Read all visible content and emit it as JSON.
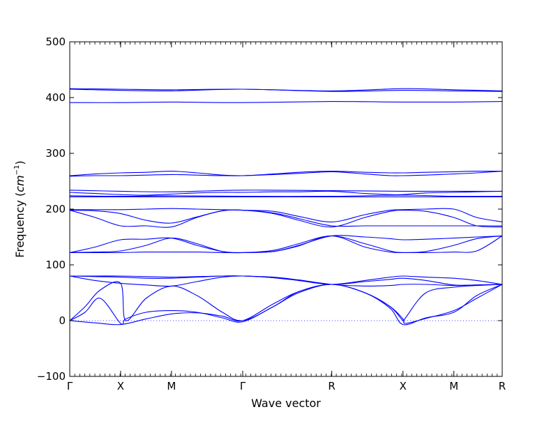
{
  "chart_data": {
    "type": "line",
    "title": "",
    "xlabel": "Wave vector",
    "ylabel_prefix": "Frequency (",
    "ylabel_unit_base": "cm",
    "ylabel_unit_exp": "−1",
    "ylabel_suffix": ")",
    "ylim": [
      -100,
      500
    ],
    "yticks": [
      -100,
      0,
      100,
      200,
      300,
      400,
      500
    ],
    "ytick_labels": [
      "−100",
      "0",
      "100",
      "200",
      "300",
      "400",
      "500"
    ],
    "grid": false,
    "legend": "none",
    "line_color": "#0000ff",
    "zero_line": true,
    "xlim": [
      0,
      8.5
    ],
    "kpoints": [
      {
        "label": "Γ",
        "pos": 0
      },
      {
        "label": "X",
        "pos": 1
      },
      {
        "label": "M",
        "pos": 2
      },
      {
        "label": "Γ",
        "pos": 3.4
      },
      {
        "label": "R",
        "pos": 5.15
      },
      {
        "label": "X",
        "pos": 6.55
      },
      {
        "label": "M",
        "pos": 7.55
      },
      {
        "label": "R",
        "pos": 8.5
      }
    ],
    "bands": [
      {
        "name": "b1",
        "x": [
          0,
          0.5,
          1,
          1.5,
          2,
          2.5,
          3,
          3.4,
          4,
          4.5,
          5.15,
          5.8,
          6.3,
          6.55,
          7,
          7.55,
          8,
          8.5
        ],
        "y": [
          0,
          -4,
          -7,
          3,
          12,
          14,
          8,
          0,
          30,
          52,
          65,
          50,
          22,
          -7,
          5,
          15,
          45,
          65
        ]
      },
      {
        "name": "b2",
        "x": [
          0,
          0.3,
          0.6,
          1,
          1.1,
          1.5,
          2,
          2.5,
          3,
          3.4,
          4,
          4.5,
          5.15,
          5.8,
          6.3,
          6.55,
          6.6,
          7,
          7.55,
          8,
          8.5
        ],
        "y": [
          0,
          15,
          40,
          -5,
          3,
          15,
          18,
          15,
          5,
          -2,
          25,
          50,
          65,
          50,
          25,
          3,
          -5,
          4,
          18,
          40,
          65
        ]
      },
      {
        "name": "b3",
        "x": [
          0,
          0.3,
          0.6,
          1,
          1.1,
          1.5,
          2,
          2.5,
          3,
          3.4,
          4,
          4.5,
          5.15,
          5.8,
          6.3,
          6.55,
          6.6,
          7,
          7.55,
          8,
          8.5
        ],
        "y": [
          0,
          25,
          55,
          67,
          0,
          40,
          62,
          45,
          15,
          0,
          25,
          52,
          65,
          50,
          25,
          0,
          5,
          50,
          60,
          63,
          65
        ]
      },
      {
        "name": "b4",
        "x": [
          0,
          0.5,
          1,
          1.5,
          2,
          2.5,
          3,
          3.4,
          4,
          4.5,
          5.15,
          5.8,
          6.3,
          6.55,
          7,
          7.55,
          8,
          8.5
        ],
        "y": [
          80,
          72,
          67,
          64,
          62,
          70,
          78,
          80,
          77,
          72,
          65,
          70,
          74,
          76,
          72,
          64,
          64,
          65
        ]
      },
      {
        "name": "b5",
        "x": [
          0,
          0.5,
          1,
          1.5,
          2,
          2.5,
          3,
          3.4,
          4,
          4.5,
          5.15,
          5.8,
          6.3,
          6.55,
          7,
          7.55,
          8,
          8.5
        ],
        "y": [
          80,
          79,
          78,
          76,
          76,
          78,
          80,
          80,
          77,
          72,
          65,
          72,
          78,
          80,
          78,
          76,
          72,
          65
        ]
      },
      {
        "name": "b6",
        "x": [
          0,
          0.5,
          1,
          1.5,
          2,
          2.5,
          3,
          3.4,
          4,
          4.5,
          5.15,
          5.8,
          6.3,
          6.55,
          7,
          7.55,
          8,
          8.5
        ],
        "y": [
          80,
          80,
          80,
          79,
          78,
          79,
          80,
          80,
          78,
          73,
          65,
          62,
          63,
          65,
          65,
          63,
          64,
          65
        ]
      },
      {
        "name": "b7",
        "x": [
          0,
          0.5,
          1,
          1.5,
          2,
          2.5,
          3,
          3.4,
          4,
          4.5,
          5.15,
          5.8,
          6.3,
          6.55,
          7,
          7.55,
          8,
          8.5
        ],
        "y": [
          122,
          132,
          145,
          146,
          148,
          135,
          124,
          122,
          124,
          135,
          152,
          150,
          147,
          145,
          146,
          148,
          150,
          152
        ]
      },
      {
        "name": "b8",
        "x": [
          0,
          0.5,
          1,
          1.5,
          2,
          2.5,
          3,
          3.4,
          4,
          4.5,
          5.15,
          5.8,
          6.3,
          6.55,
          7,
          7.55,
          8,
          8.5
        ],
        "y": [
          122,
          123,
          125,
          135,
          148,
          138,
          124,
          122,
          126,
          138,
          152,
          138,
          125,
          122,
          124,
          135,
          147,
          152
        ]
      },
      {
        "name": "b9",
        "x": [
          0,
          0.5,
          1,
          1.5,
          2,
          2.5,
          3,
          3.4,
          4,
          4.5,
          5.15,
          5.8,
          6.3,
          6.55,
          7,
          7.55,
          8,
          8.5
        ],
        "y": [
          122,
          122,
          122,
          123,
          123,
          123,
          122,
          122,
          124,
          134,
          152,
          132,
          123,
          122,
          122,
          123,
          125,
          152
        ]
      },
      {
        "name": "b10",
        "x": [
          0,
          0.5,
          1,
          1.5,
          2,
          2.5,
          3,
          3.4,
          4,
          4.5,
          5.15,
          5.8,
          6.3,
          6.55,
          7,
          7.55,
          8,
          8.5
        ],
        "y": [
          198,
          185,
          170,
          170,
          168,
          185,
          197,
          198,
          192,
          180,
          168,
          185,
          196,
          198,
          196,
          185,
          170,
          168
        ]
      },
      {
        "name": "b11",
        "x": [
          0,
          0.5,
          1,
          1.5,
          2,
          2.5,
          3,
          3.4,
          4,
          4.5,
          5.15,
          5.8,
          6.3,
          6.55,
          7,
          7.55,
          8,
          8.5
        ],
        "y": [
          198,
          197,
          192,
          180,
          175,
          186,
          197,
          198,
          193,
          183,
          170,
          170,
          170,
          170,
          170,
          170,
          170,
          170
        ]
      },
      {
        "name": "b12",
        "x": [
          0,
          0.5,
          1,
          1.5,
          2,
          2.5,
          3,
          3.4,
          4,
          4.5,
          5.15,
          5.8,
          6.3,
          6.55,
          7,
          7.55,
          8,
          8.5
        ],
        "y": [
          199,
          199,
          199,
          200,
          201,
          200,
          199,
          198,
          196,
          187,
          177,
          190,
          198,
          199,
          200,
          200,
          185,
          177
        ]
      },
      {
        "name": "b13",
        "x": [
          0,
          1,
          2,
          3.4,
          5.15,
          6.55,
          7.55,
          8.5
        ],
        "y": [
          222,
          222,
          222,
          222,
          222,
          222,
          222,
          222
        ]
      },
      {
        "name": "b14",
        "x": [
          0,
          1,
          2,
          3.4,
          5.15,
          6.55,
          7.55,
          8.5
        ],
        "y": [
          224,
          223,
          224,
          223,
          223,
          225,
          223,
          223
        ]
      },
      {
        "name": "b15",
        "x": [
          0,
          0.5,
          1,
          1.5,
          2,
          2.5,
          3,
          3.4,
          4,
          4.5,
          5.15,
          5.8,
          6.3,
          6.55,
          7,
          7.55,
          8,
          8.5
        ],
        "y": [
          230,
          228,
          226,
          225,
          227,
          229,
          230,
          230,
          231,
          231,
          232,
          228,
          226,
          226,
          229,
          230,
          231,
          232
        ]
      },
      {
        "name": "b16",
        "x": [
          0,
          1,
          2,
          3.4,
          5.15,
          6.55,
          7.55,
          8.5
        ],
        "y": [
          234,
          232,
          231,
          234,
          233,
          232,
          232,
          232
        ]
      },
      {
        "name": "b17",
        "x": [
          0,
          0.5,
          1,
          1.5,
          2,
          2.5,
          3,
          3.4,
          4,
          4.5,
          5.15,
          5.8,
          6.3,
          6.55,
          7,
          7.55,
          8,
          8.5
        ],
        "y": [
          259,
          260,
          260,
          261,
          262,
          261,
          260,
          260,
          262,
          264,
          267,
          263,
          260,
          260,
          261,
          263,
          265,
          268
        ]
      },
      {
        "name": "b18",
        "x": [
          0,
          0.5,
          1,
          1.5,
          2,
          2.5,
          3,
          3.4,
          4,
          4.5,
          5.15,
          5.8,
          6.3,
          6.55,
          7,
          7.55,
          8,
          8.5
        ],
        "y": [
          260,
          263,
          265,
          266,
          268,
          265,
          261,
          260,
          263,
          266,
          268,
          266,
          265,
          265,
          266,
          267,
          268,
          268
        ]
      },
      {
        "name": "b19",
        "x": [
          0,
          1,
          2,
          3.4,
          5.15,
          6.55,
          7.55,
          8.5
        ],
        "y": [
          391,
          391,
          392,
          391,
          393,
          392,
          392,
          393
        ]
      },
      {
        "name": "b20",
        "x": [
          0,
          1,
          2,
          3.4,
          5.15,
          6.55,
          7.55,
          8.5
        ],
        "y": [
          415,
          413,
          412,
          415,
          411,
          413,
          412,
          411
        ]
      },
      {
        "name": "b21",
        "x": [
          0,
          1,
          2,
          3.4,
          5.15,
          6.55,
          7.55,
          8.5
        ],
        "y": [
          416,
          415,
          414,
          415,
          412,
          416,
          414,
          412
        ]
      }
    ]
  }
}
